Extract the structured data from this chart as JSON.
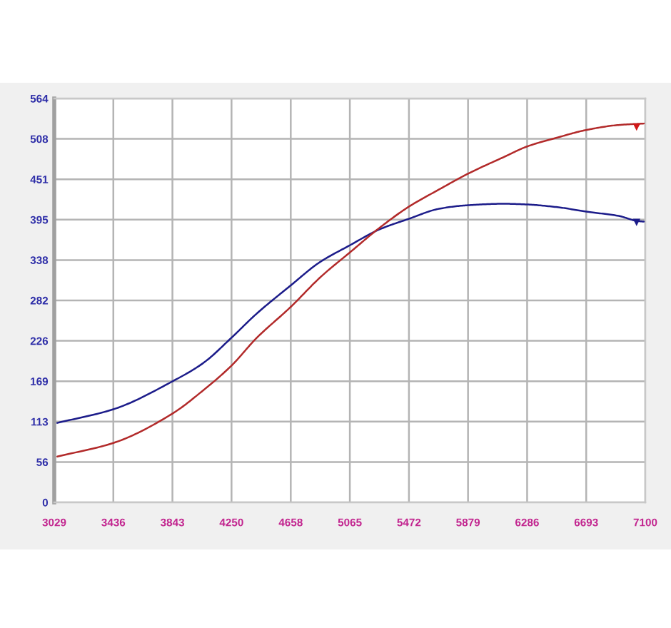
{
  "chart_data": {
    "type": "line",
    "series": [
      {
        "color": "#1c1c8a",
        "x": [
          3050,
          3436,
          3843,
          4058,
          4250,
          4420,
          4658,
          4855,
          5065,
          5267,
          5472,
          5680,
          5879,
          6123,
          6286,
          6504,
          6693,
          6917,
          7043,
          7090
        ],
        "values": [
          111,
          130,
          169,
          195,
          230,
          263,
          303,
          335,
          359,
          381,
          396,
          410,
          415,
          417,
          416,
          412,
          406,
          400,
          393,
          392
        ]
      },
      {
        "color": "#b22a2a",
        "x": [
          3050,
          3436,
          3843,
          4058,
          4250,
          4420,
          4658,
          4865,
          5065,
          5267,
          5472,
          5680,
          5879,
          6123,
          6286,
          6504,
          6693,
          6917,
          7090
        ],
        "values": [
          64,
          83,
          124,
          157,
          191,
          229,
          273,
          315,
          349,
          383,
          413,
          437,
          459,
          482,
          497,
          510,
          520,
          527,
          529
        ]
      },
      {
        "type": "scatter",
        "marker": "triangle",
        "color": "#1c1c8a",
        "x": [
          7040
        ],
        "values": [
          391
        ]
      },
      {
        "type": "scatter",
        "marker": "triangle",
        "color": "#d01818",
        "x": [
          7040
        ],
        "values": [
          524
        ]
      }
    ],
    "xlim": [
      3029,
      7100
    ],
    "xticks": [
      3029,
      3436,
      3843,
      4250,
      4658,
      5065,
      5472,
      5879,
      6286,
      6693,
      7100
    ],
    "ylim": [
      0,
      564
    ],
    "yticks": [
      0,
      {
        "value": 56.4,
        "label": "56"
      },
      {
        "value": 112.8,
        "label": "113"
      },
      {
        "value": 169.2,
        "label": "169"
      },
      {
        "value": 225.6,
        "label": "226"
      },
      282,
      {
        "value": 338.4,
        "label": "338"
      },
      {
        "value": 394.8,
        "label": "395"
      },
      {
        "value": 451.2,
        "label": "451"
      },
      {
        "value": 507.6,
        "label": "508"
      },
      564
    ],
    "grid": true,
    "line_style": "solid"
  }
}
